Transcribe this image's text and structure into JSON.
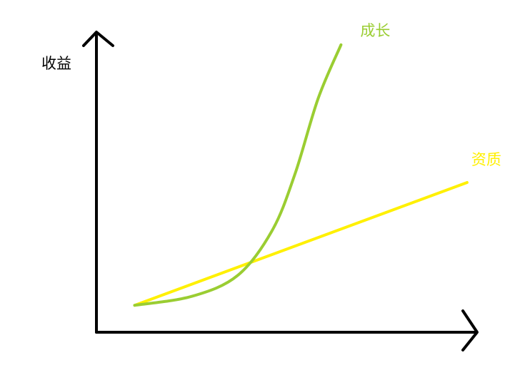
{
  "chart_data": {
    "type": "line",
    "ylabel": "收益",
    "xlabel": "",
    "xlim": [
      0,
      10
    ],
    "ylim": [
      0,
      10
    ],
    "grid": false,
    "legend": "none",
    "series": [
      {
        "name": "成长",
        "color": "#9ACD32",
        "points": [
          [
            1.0,
            0.9
          ],
          [
            2.5,
            1.2
          ],
          [
            3.7,
            1.9
          ],
          [
            4.6,
            3.4
          ],
          [
            5.2,
            5.3
          ],
          [
            5.8,
            7.8
          ],
          [
            6.4,
            9.6
          ]
        ]
      },
      {
        "name": "资质",
        "color": "#FFF000",
        "points": [
          [
            1.0,
            0.9
          ],
          [
            9.7,
            5.0
          ]
        ]
      }
    ]
  },
  "colors": {
    "axis": "#000000",
    "ylabel_text": "#000000"
  }
}
